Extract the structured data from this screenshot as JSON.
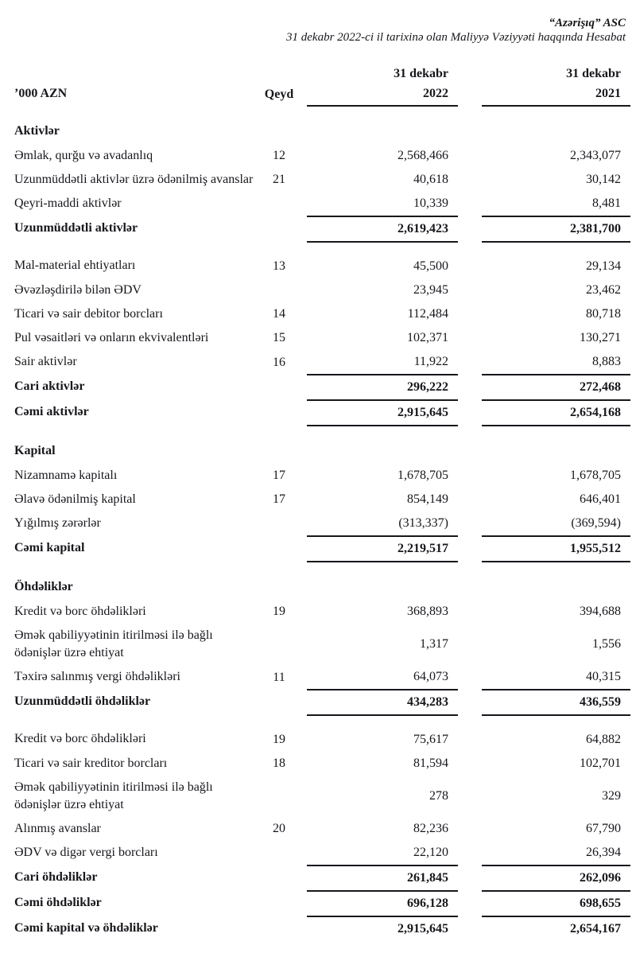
{
  "title": {
    "company": "“Azərişıq” ASC",
    "report_line": "31 dekabr 2022-ci il tarixinə olan Maliyyə Vəziyyəti haqqında Hesabat"
  },
  "table": {
    "unit_header": "’000 AZN",
    "note_header": "Qeyd",
    "period_headers": [
      {
        "line1": "31 dekabr",
        "line2": "2022"
      },
      {
        "line1": "31 dekabr",
        "line2": "2021"
      }
    ],
    "rows": [
      {
        "type": "section",
        "label": "Aktivlər"
      },
      {
        "type": "item",
        "label": "Əmlak, qurğu və avadanlıq",
        "qeyd": "12",
        "v2022": "2,568,466",
        "v2021": "2,343,077"
      },
      {
        "type": "item",
        "label": "Uzunmüddətli aktivlər üzrə ödənilmiş avanslar",
        "qeyd": "21",
        "v2022": "40,618",
        "v2021": "30,142"
      },
      {
        "type": "item",
        "label": "Qeyri-maddi aktivlər",
        "qeyd": "",
        "v2022": "10,339",
        "v2021": "8,481",
        "rule_below": true
      },
      {
        "type": "total",
        "label": "Uzunmüddətli aktivlər",
        "qeyd": "",
        "v2022": "2,619,423",
        "v2021": "2,381,700",
        "rule_below": true
      },
      {
        "type": "item",
        "label": "Mal-material ehtiyatları",
        "qeyd": "13",
        "v2022": "45,500",
        "v2021": "29,134",
        "gap_above": true
      },
      {
        "type": "item",
        "label": "Əvəzləşdirilə bilən ƏDV",
        "qeyd": "",
        "v2022": "23,945",
        "v2021": "23,462"
      },
      {
        "type": "item",
        "label": "Ticari və sair debitor borcları",
        "qeyd": "14",
        "v2022": "112,484",
        "v2021": "80,718"
      },
      {
        "type": "item",
        "label": "Pul vəsaitləri və onların ekvivalentləri",
        "qeyd": "15",
        "v2022": "102,371",
        "v2021": "130,271"
      },
      {
        "type": "item",
        "label": "Sair aktivlər",
        "qeyd": "16",
        "v2022": "11,922",
        "v2021": "8,883",
        "rule_below": true
      },
      {
        "type": "total",
        "label": "Cari aktivlər",
        "qeyd": "",
        "v2022": "296,222",
        "v2021": "272,468",
        "rule_below": true
      },
      {
        "type": "total",
        "label": "Cəmi aktivlər",
        "qeyd": "",
        "v2022": "2,915,645",
        "v2021": "2,654,168",
        "rule_below": true
      },
      {
        "type": "section",
        "label": "Kapital"
      },
      {
        "type": "item",
        "label": "Nizamnamə kapitalı",
        "qeyd": "17",
        "v2022": "1,678,705",
        "v2021": "1,678,705"
      },
      {
        "type": "item",
        "label": "Əlavə ödənilmiş kapital",
        "qeyd": "17",
        "v2022": "854,149",
        "v2021": "646,401"
      },
      {
        "type": "item",
        "label": "Yığılmış zərərlər",
        "qeyd": "",
        "v2022": "(313,337)",
        "v2021": "(369,594)",
        "rule_below": true
      },
      {
        "type": "total",
        "label": "Cəmi kapital",
        "qeyd": "",
        "v2022": "2,219,517",
        "v2021": "1,955,512",
        "rule_below": true
      },
      {
        "type": "section",
        "label": "Öhdəliklər"
      },
      {
        "type": "item",
        "label": "Kredit və borc öhdəlikləri",
        "qeyd": "19",
        "v2022": "368,893",
        "v2021": "394,688"
      },
      {
        "type": "item",
        "label": "Əmək qabiliyyətinin itirilməsi ilə bağlı ödənişlər üzrə ehtiyat",
        "qeyd": "",
        "v2022": "1,317",
        "v2021": "1,556"
      },
      {
        "type": "item",
        "label": "Təxirə salınmış vergi öhdəlikləri",
        "qeyd": "11",
        "v2022": "64,073",
        "v2021": "40,315",
        "rule_below": true
      },
      {
        "type": "total",
        "label": "Uzunmüddətli öhdəliklər",
        "qeyd": "",
        "v2022": "434,283",
        "v2021": "436,559",
        "rule_below": true
      },
      {
        "type": "item",
        "label": "Kredit və borc öhdəlikləri",
        "qeyd": "19",
        "v2022": "75,617",
        "v2021": "64,882",
        "gap_above": true
      },
      {
        "type": "item",
        "label": "Ticari və sair kreditor borcları",
        "qeyd": "18",
        "v2022": "81,594",
        "v2021": "102,701"
      },
      {
        "type": "item",
        "label": "Əmək qabiliyyətinin itirilməsi ilə bağlı ödənişlər üzrə ehtiyat",
        "qeyd": "",
        "v2022": "278",
        "v2021": "329"
      },
      {
        "type": "item",
        "label": "Alınmış avanslar",
        "qeyd": "20",
        "v2022": "82,236",
        "v2021": "67,790"
      },
      {
        "type": "item",
        "label": "ƏDV və digər vergi borcları",
        "qeyd": "",
        "v2022": "22,120",
        "v2021": "26,394",
        "rule_below": true
      },
      {
        "type": "total",
        "label": "Cari öhdəliklər",
        "qeyd": "",
        "v2022": "261,845",
        "v2021": "262,096",
        "rule_below": true
      },
      {
        "type": "total",
        "label": "Cəmi öhdəliklər",
        "qeyd": "",
        "v2022": "696,128",
        "v2021": "698,655",
        "rule_below": true
      },
      {
        "type": "total",
        "label": "Cəmi kapital və öhdəliklər",
        "qeyd": "",
        "v2022": "2,915,645",
        "v2021": "2,654,167"
      }
    ]
  },
  "colors": {
    "text": "#17171c",
    "background": "#ffffff",
    "rule": "#17171c"
  }
}
